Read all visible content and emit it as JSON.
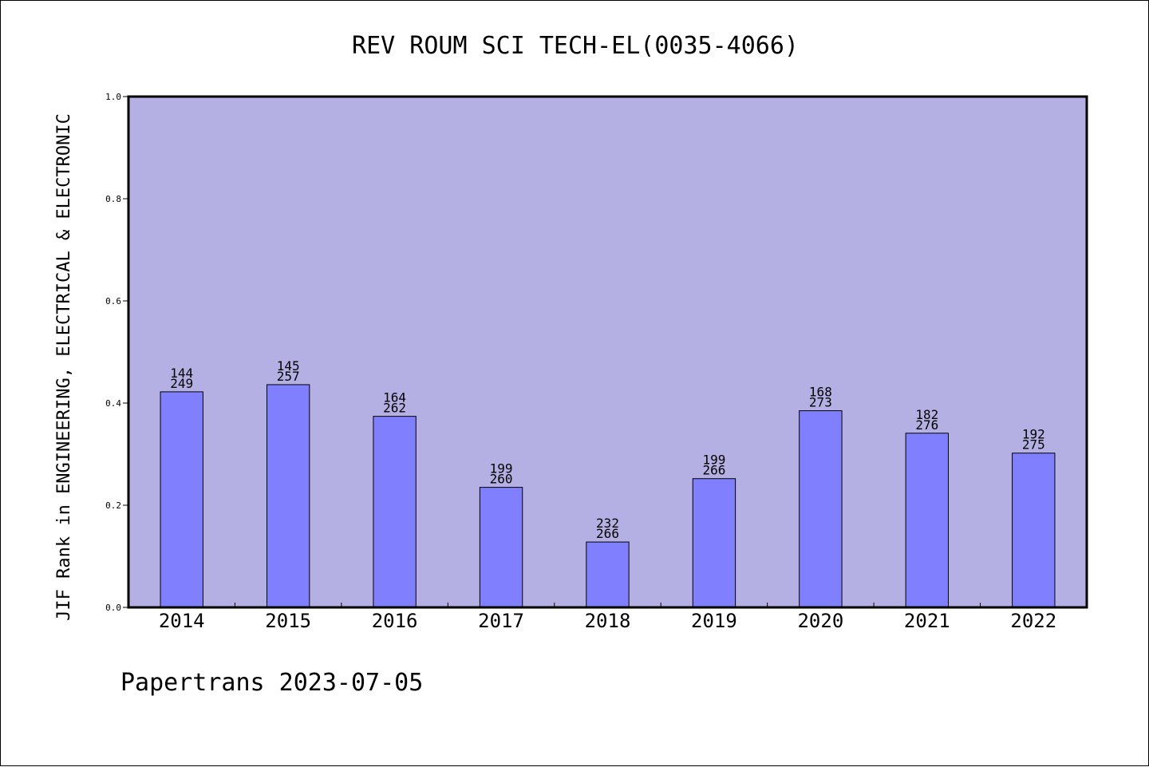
{
  "chart_data": {
    "type": "bar",
    "title": "REV ROUM SCI TECH-EL(0035-4066)",
    "ylabel": "JIF Rank in ENGINEERING, ELECTRICAL & ELECTRONIC",
    "xlabel": "",
    "footer": "Papertrans 2023-07-05",
    "categories": [
      "2014",
      "2015",
      "2016",
      "2017",
      "2018",
      "2019",
      "2020",
      "2021",
      "2022"
    ],
    "values": [
      0.422,
      0.436,
      0.374,
      0.235,
      0.128,
      0.252,
      0.385,
      0.341,
      0.302
    ],
    "rank": [
      "144",
      "145",
      "164",
      "199",
      "232",
      "199",
      "168",
      "182",
      "192"
    ],
    "total": [
      "249",
      "257",
      "262",
      "260",
      "266",
      "266",
      "273",
      "276",
      "275"
    ],
    "ylim": [
      0,
      1.0
    ],
    "yticks": [
      "0.0",
      "0.2",
      "0.4",
      "0.6",
      "0.8",
      "1.0"
    ],
    "grid": false,
    "colors": {
      "plot_background": "#b5b0e3",
      "bar_fill": "#8080ff",
      "bar_stroke": "#000000",
      "axis": "#000000",
      "text": "#000000"
    }
  }
}
